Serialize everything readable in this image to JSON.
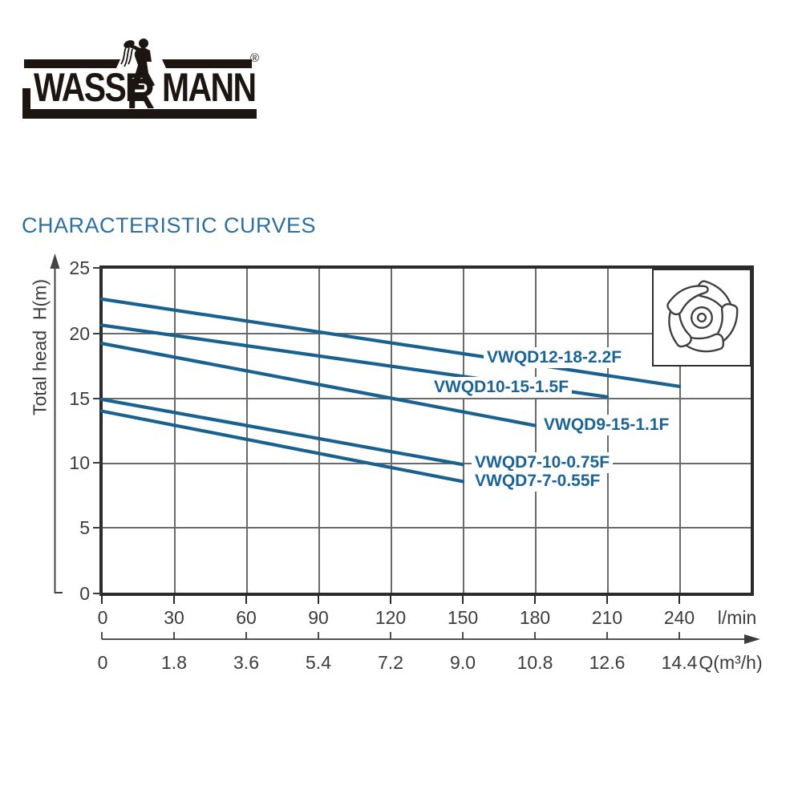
{
  "logo": {
    "brand": "WASSERMANN",
    "word_left": "WASSE",
    "dropped_letter": "R",
    "word_right": "MANN",
    "registered": "®"
  },
  "title": "CHARACTERISTIC CURVES",
  "colors": {
    "curve_blue": "#19618f",
    "label_blue": "#1d6494",
    "title_blue": "#2d6f9f",
    "axis_text": "#3c3c3c",
    "grid_gray": "#6a6a6a",
    "border_black": "#2b2b2b",
    "logo_black": "#1c1511"
  },
  "chart_data": {
    "type": "line",
    "title": "CHARACTERISTIC CURVES",
    "grid": true,
    "line_color": "#19618f",
    "y_axis": {
      "label": "Total head  H(m)",
      "tick_labels": [
        "25",
        "20",
        "15",
        "10",
        "5",
        "0"
      ],
      "range": [
        0,
        25
      ]
    },
    "x_axis_primary": {
      "unit": "l/min",
      "tick_labels": [
        "0",
        "30",
        "60",
        "90",
        "120",
        "150",
        "180",
        "210",
        "240"
      ],
      "tick_values_lpm": [
        0,
        30,
        60,
        90,
        120,
        150,
        180,
        210,
        240
      ],
      "range_lpm": [
        0,
        270
      ]
    },
    "x_axis_secondary": {
      "unit": "Q(m³/h)",
      "tick_labels": [
        "0",
        "1.8",
        "3.6",
        "5.4",
        "7.2",
        "9.0",
        "10.8",
        "12.6",
        "14.4"
      ]
    },
    "series": [
      {
        "name": "VWQD12-18-2.2F",
        "points_lpm_m": [
          [
            0,
            22.6
          ],
          [
            240,
            15.9
          ]
        ]
      },
      {
        "name": "VWQD10-15-1.5F",
        "points_lpm_m": [
          [
            0,
            20.6
          ],
          [
            210,
            15.1
          ]
        ]
      },
      {
        "name": "VWQD9-15-1.1F",
        "points_lpm_m": [
          [
            0,
            19.2
          ],
          [
            180,
            12.9
          ]
        ]
      },
      {
        "name": "VWQD7-10-0.75F",
        "points_lpm_m": [
          [
            0,
            14.9
          ],
          [
            150,
            9.9
          ]
        ]
      },
      {
        "name": "VWQD7-7-0.55F",
        "points_lpm_m": [
          [
            0,
            14.0
          ],
          [
            150,
            8.6
          ]
        ]
      }
    ]
  }
}
